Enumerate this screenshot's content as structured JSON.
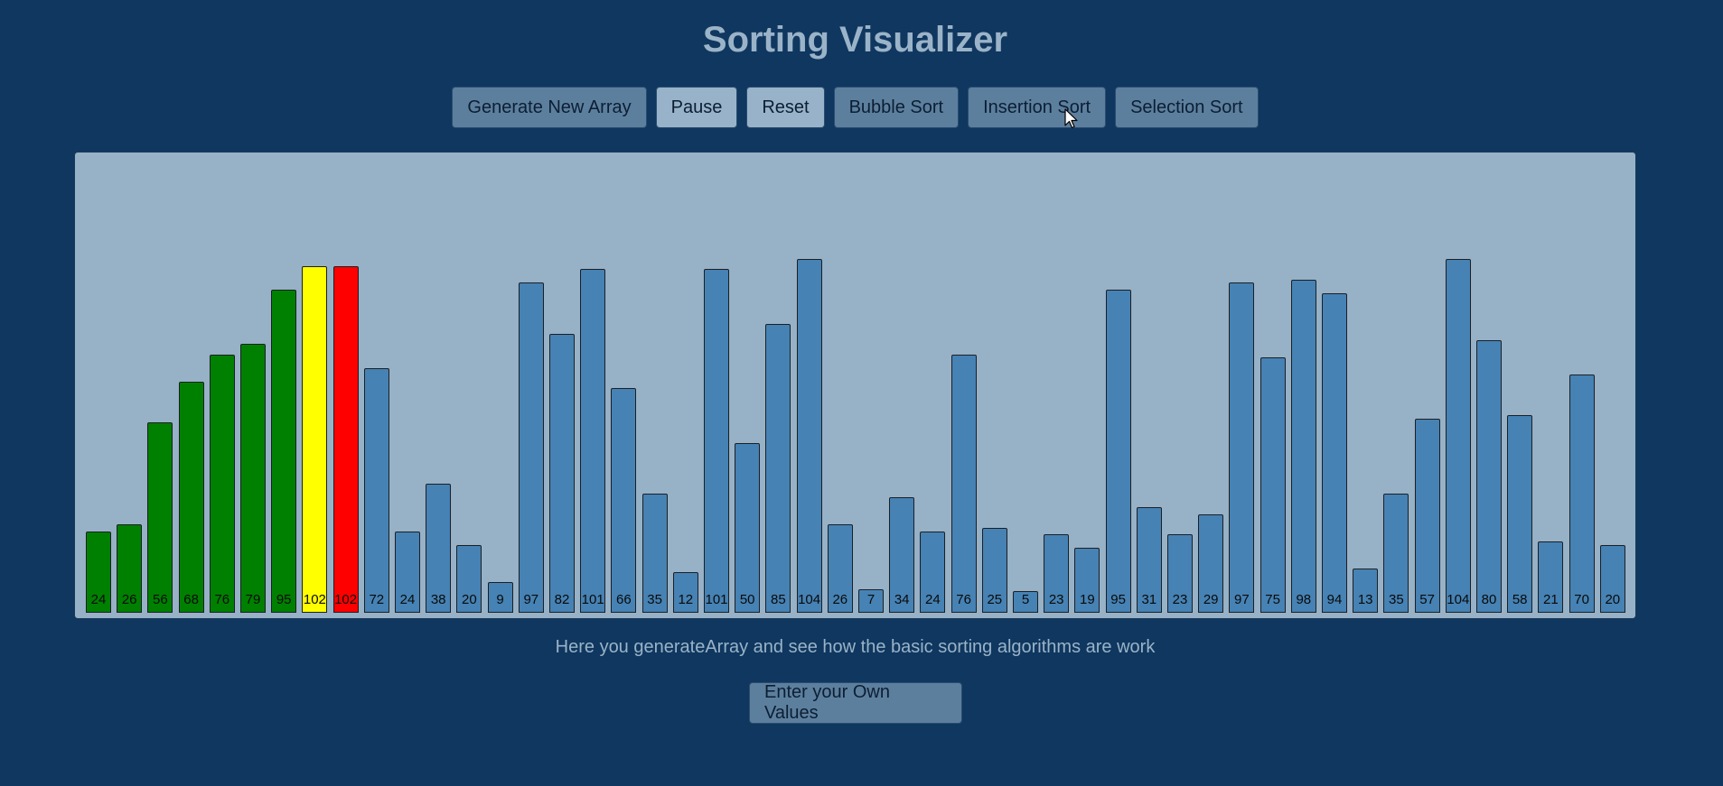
{
  "header": {
    "title": "Sorting Visualizer"
  },
  "toolbar": {
    "generate_label": "Generate New Array",
    "pause_label": "Pause",
    "reset_label": "Reset",
    "bubble_label": "Bubble Sort",
    "insertion_label": "Insertion Sort",
    "selection_label": "Selection Sort"
  },
  "colors": {
    "background": "#0f375f",
    "panel": "#97b1c6",
    "sorted": "#008000",
    "comparing": "#ffff00",
    "swapping": "#ff0000",
    "default": "#4682b4"
  },
  "chart_data": {
    "type": "bar",
    "values": [
      24,
      26,
      56,
      68,
      76,
      79,
      95,
      102,
      102,
      72,
      24,
      38,
      20,
      9,
      97,
      82,
      101,
      66,
      35,
      12,
      101,
      50,
      85,
      104,
      26,
      7,
      34,
      24,
      76,
      25,
      5,
      23,
      19,
      95,
      31,
      23,
      29,
      97,
      75,
      98,
      94,
      13,
      35,
      57,
      104,
      80,
      58,
      21,
      70,
      20
    ],
    "states": [
      "sorted",
      "sorted",
      "sorted",
      "sorted",
      "sorted",
      "sorted",
      "sorted",
      "comparing",
      "swapping",
      "default",
      "default",
      "default",
      "default",
      "default",
      "default",
      "default",
      "default",
      "default",
      "default",
      "default",
      "default",
      "default",
      "default",
      "default",
      "default",
      "default",
      "default",
      "default",
      "default",
      "default",
      "default",
      "default",
      "default",
      "default",
      "default",
      "default",
      "default",
      "default",
      "default",
      "default",
      "default",
      "default",
      "default",
      "default",
      "default",
      "default",
      "default",
      "default",
      "default",
      "default"
    ],
    "ylim": [
      0,
      104
    ]
  },
  "footer": {
    "caption": "Here you generateArray and see how the basic sorting algorithms are work",
    "own_values_label": "Enter your Own Values"
  }
}
